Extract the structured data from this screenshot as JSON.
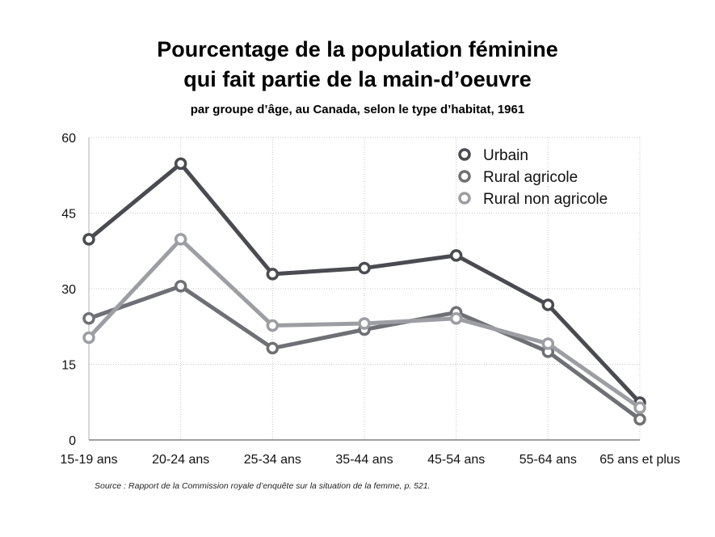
{
  "chart_data": {
    "type": "line",
    "title_line1": "Pourcentage de la population féminine",
    "title_line2": "qui fait partie de la main-d’oeuvre",
    "subtitle": "par groupe d’âge, au Canada, selon le type d’habitat, 1961",
    "source": "Source : Rapport de la Commission royale d’enquête sur la situation de la femme, p. 521.",
    "categories": [
      "15-19 ans",
      "20-24 ans",
      "25-34 ans",
      "35-44 ans",
      "45-54 ans",
      "55-64 ans",
      "65 ans et plus"
    ],
    "y_ticks": [
      0,
      15,
      30,
      45,
      60
    ],
    "ylim": [
      0,
      60
    ],
    "grid": true,
    "legend_position": "top-right",
    "series": [
      {
        "name": "Urbain",
        "color": "#4a4b50",
        "values": [
          39.8,
          54.8,
          32.9,
          34.1,
          36.6,
          26.8,
          7.4
        ]
      },
      {
        "name": "Rural agricole",
        "color": "#6f7075",
        "values": [
          24.1,
          30.5,
          18.2,
          21.9,
          25.3,
          17.5,
          4.1
        ]
      },
      {
        "name": "Rural non agricole",
        "color": "#9d9ea3",
        "values": [
          20.3,
          39.8,
          22.7,
          23.1,
          24.1,
          19.1,
          6.4
        ]
      }
    ]
  }
}
